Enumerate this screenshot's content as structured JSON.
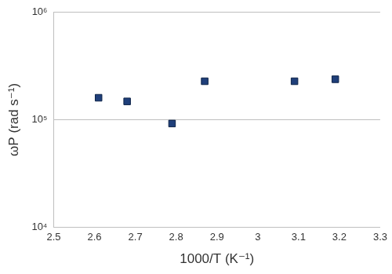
{
  "chart_data": {
    "type": "scatter",
    "x": [
      2.61,
      2.68,
      2.79,
      2.87,
      3.09,
      3.19
    ],
    "values": [
      160000,
      148000,
      92000,
      228000,
      228000,
      238000
    ],
    "color": "#1f3f7a",
    "marker": "square",
    "xlabel": "1000/T (K⁻¹)",
    "ylabel": "ωP (rad s⁻¹)",
    "xlim": [
      2.5,
      3.3
    ],
    "xticks": [
      2.5,
      2.6,
      2.7,
      2.8,
      2.9,
      3,
      3.1,
      3.2,
      3.3
    ],
    "ylim": [
      10000,
      1000000
    ],
    "yticks": [
      {
        "value": 10000,
        "label": "10⁴"
      },
      {
        "value": 100000,
        "label": "10⁵"
      },
      {
        "value": 1000000,
        "label": "10⁶"
      }
    ],
    "log": "y",
    "grid": "y"
  }
}
